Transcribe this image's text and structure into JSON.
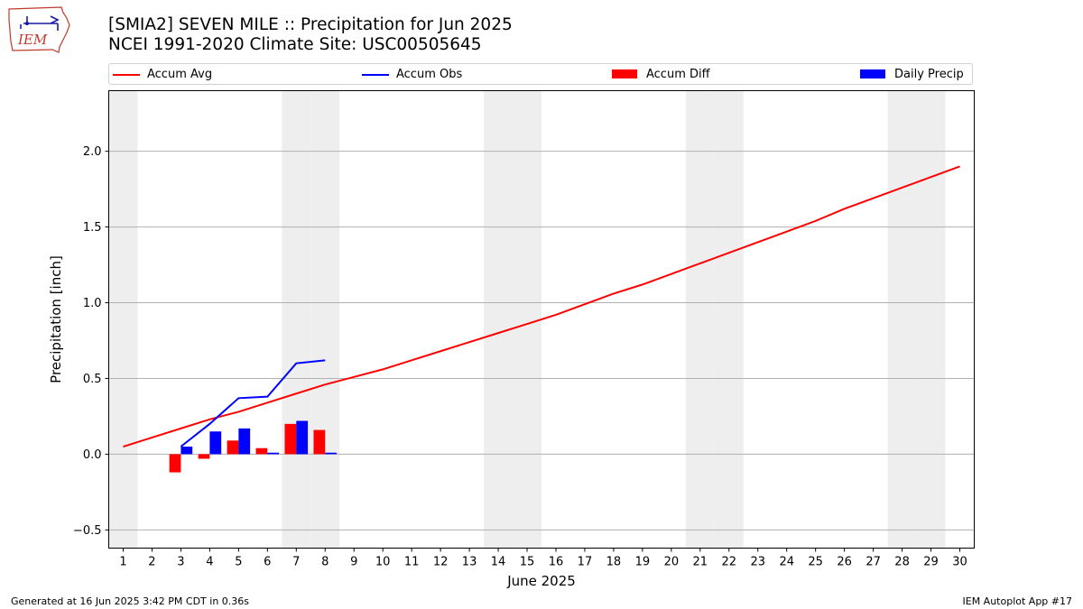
{
  "header": {
    "title_line1": "[SMIA2] SEVEN MILE :: Precipitation for Jun 2025",
    "title_line2": "NCEI 1991-2020 Climate Site: USC00505645",
    "logo_text": "IEM"
  },
  "footer": {
    "generated": "Generated at 16 Jun 2025 3:42 PM CDT in 0.36s",
    "app": "IEM Autoplot App #17"
  },
  "legend": {
    "accum_avg": "Accum Avg",
    "accum_obs": "Accum Obs",
    "accum_diff": "Accum Diff",
    "daily_precip": "Daily Precip"
  },
  "colors": {
    "avg": "#ff0000",
    "obs": "#0000ff",
    "diff": "#ff0000",
    "daily": "#0000ff",
    "weekend_shade": "#eeeeee",
    "grid": "#b0b0b0"
  },
  "chart_data": {
    "type": "line",
    "xlabel": "June 2025",
    "ylabel": "Precipitation [inch]",
    "xlim": [
      0.5,
      30.5
    ],
    "ylim": [
      -0.62,
      2.4
    ],
    "yticks": [
      -0.5,
      0.0,
      0.5,
      1.0,
      1.5,
      2.0
    ],
    "ytick_labels": [
      "−0.5",
      "0.0",
      "0.5",
      "1.0",
      "1.5",
      "2.0"
    ],
    "x": [
      1,
      2,
      3,
      4,
      5,
      6,
      7,
      8,
      9,
      10,
      11,
      12,
      13,
      14,
      15,
      16,
      17,
      18,
      19,
      20,
      21,
      22,
      23,
      24,
      25,
      26,
      27,
      28,
      29,
      30
    ],
    "xtick_labels": [
      "1",
      "2",
      "3",
      "4",
      "5",
      "6",
      "7",
      "8",
      "9",
      "10",
      "11",
      "12",
      "13",
      "14",
      "15",
      "16",
      "17",
      "18",
      "19",
      "20",
      "21",
      "22",
      "23",
      "24",
      "25",
      "26",
      "27",
      "28",
      "29",
      "30"
    ],
    "grid": "horizontal",
    "weekend_days": [
      1,
      7,
      8,
      14,
      15,
      21,
      22,
      28,
      29
    ],
    "series": [
      {
        "name": "Accum Avg",
        "kind": "line",
        "x": [
          1,
          2,
          3,
          4,
          5,
          6,
          7,
          8,
          9,
          10,
          11,
          12,
          13,
          14,
          15,
          16,
          17,
          18,
          19,
          20,
          21,
          22,
          23,
          24,
          25,
          26,
          27,
          28,
          29,
          30
        ],
        "values": [
          0.05,
          0.11,
          0.17,
          0.23,
          0.28,
          0.34,
          0.4,
          0.46,
          0.51,
          0.56,
          0.62,
          0.68,
          0.74,
          0.8,
          0.86,
          0.92,
          0.99,
          1.06,
          1.12,
          1.19,
          1.26,
          1.33,
          1.4,
          1.47,
          1.54,
          1.62,
          1.69,
          1.76,
          1.83,
          1.9
        ]
      },
      {
        "name": "Accum Obs",
        "kind": "line",
        "x": [
          3,
          4,
          5,
          6,
          7,
          8
        ],
        "values": [
          0.05,
          0.2,
          0.37,
          0.38,
          0.6,
          0.62
        ]
      },
      {
        "name": "Accum Diff",
        "kind": "bar",
        "x": [
          3,
          4,
          5,
          6,
          7,
          8
        ],
        "values": [
          -0.12,
          -0.03,
          0.09,
          0.04,
          0.2,
          0.16
        ]
      },
      {
        "name": "Daily Precip",
        "kind": "bar",
        "x": [
          3,
          4,
          5,
          6,
          7,
          8
        ],
        "values": [
          0.05,
          0.15,
          0.17,
          0.01,
          0.22,
          0.01
        ]
      }
    ]
  }
}
